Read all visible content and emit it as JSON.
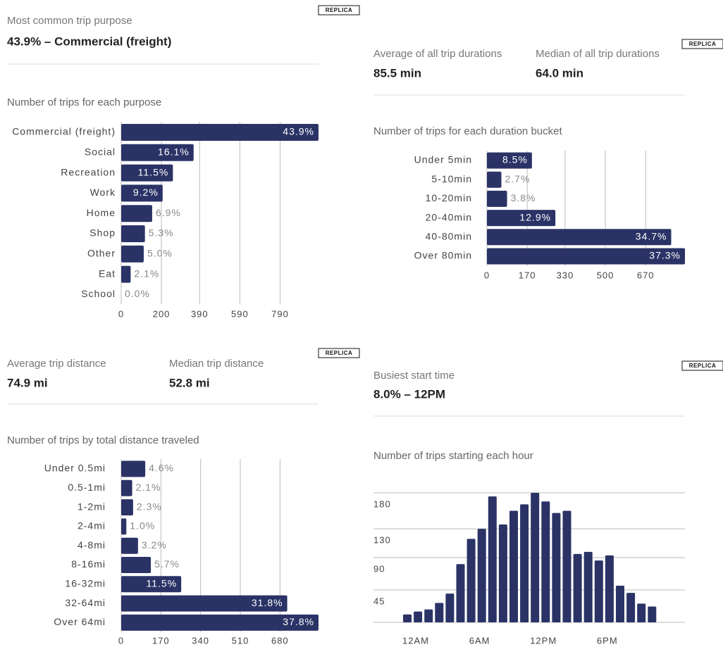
{
  "chart_data": [
    {
      "type": "barh",
      "badge": "REPLICA",
      "stats": [
        {
          "label": "Most common trip purpose",
          "value": "43.9% – Commercial (freight)"
        }
      ],
      "title": "Number of trips for each purpose",
      "categories": [
        "Commercial (freight)",
        "Social",
        "Recreation",
        "Work",
        "Home",
        "Shop",
        "Other",
        "Eat",
        "School"
      ],
      "values": [
        981,
        360,
        257,
        206,
        154,
        118,
        112,
        47,
        0
      ],
      "value_labels": [
        "43.9%",
        "16.1%",
        "11.5%",
        "9.2%",
        "6.9%",
        "5.3%",
        "5.0%",
        "2.1%",
        "0.0%"
      ],
      "xlim": [
        0,
        981
      ],
      "xticks": [
        0,
        200,
        390,
        590,
        790
      ],
      "color": "#2b3366",
      "grid": true
    },
    {
      "type": "barh",
      "badge": "REPLICA",
      "stats": [
        {
          "label": "Average of all trip durations",
          "value": "85.5 min"
        },
        {
          "label": "Median of all trip durations",
          "value": "64.0 min"
        }
      ],
      "title": "Number of trips for each duration bucket",
      "categories": [
        "Under 5min",
        "5-10min",
        "10-20min",
        "20-40min",
        "40-80min",
        "Over 80min"
      ],
      "values": [
        190,
        61,
        85,
        289,
        778,
        836
      ],
      "value_labels": [
        "8.5%",
        "2.7%",
        "3.8%",
        "12.9%",
        "34.7%",
        "37.3%"
      ],
      "xlim": [
        0,
        836
      ],
      "xticks": [
        0,
        170,
        330,
        500,
        670
      ],
      "color": "#2b3366",
      "grid": true
    },
    {
      "type": "barh",
      "badge": "REPLICA",
      "stats": [
        {
          "label": "Average trip distance",
          "value": "74.9 mi"
        },
        {
          "label": "Median trip distance",
          "value": "52.8 mi"
        }
      ],
      "title": "Number of trips by total distance traveled",
      "categories": [
        "Under 0.5mi",
        "0.5-1mi",
        "1-2mi",
        "2-4mi",
        "4-8mi",
        "8-16mi",
        "16-32mi",
        "32-64mi",
        "Over 64mi"
      ],
      "values": [
        103,
        47,
        51,
        22,
        72,
        127,
        257,
        711,
        845
      ],
      "value_labels": [
        "4.6%",
        "2.1%",
        "2.3%",
        "1.0%",
        "3.2%",
        "5.7%",
        "11.5%",
        "31.8%",
        "37.8%"
      ],
      "xlim": [
        0,
        845
      ],
      "xticks": [
        0,
        170,
        340,
        510,
        680
      ],
      "color": "#2b3366",
      "grid": true
    },
    {
      "type": "bar",
      "badge": "REPLICA",
      "stats": [
        {
          "label": "Busiest start time",
          "value": "8.0% – 12PM"
        }
      ],
      "title": "Number of trips starting each hour",
      "categories": [
        "12AM",
        null,
        null,
        null,
        null,
        null,
        "6AM",
        null,
        null,
        null,
        null,
        null,
        "12PM",
        null,
        null,
        null,
        null,
        null,
        "6PM",
        null,
        null,
        null,
        null,
        null
      ],
      "values": [
        11,
        15,
        18,
        27,
        40,
        81,
        116,
        130,
        175,
        136,
        155,
        164,
        180,
        168,
        152,
        155,
        95,
        98,
        86,
        93,
        51,
        41,
        26,
        22
      ],
      "ylim": [
        0,
        180
      ],
      "yticks": [
        45,
        90,
        130,
        180
      ],
      "color": "#2b3366",
      "grid": true
    }
  ]
}
